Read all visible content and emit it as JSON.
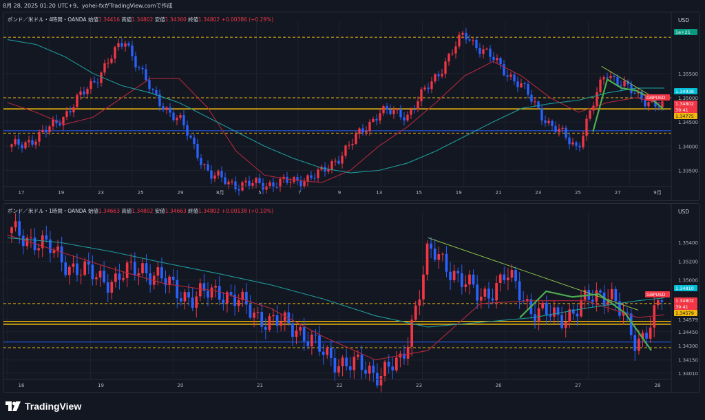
{
  "header_text": "8月 28, 2025 01:20 UTC+9、yohei-fxがTradingView.comで作成",
  "footer": {
    "brand": "TradingView"
  },
  "colors": {
    "up": "#f23645",
    "down": "#2962ff",
    "ma_fast": "#b2283a",
    "ma_slow": "#1e9b9b",
    "gold": "#f0b90b",
    "green": "#4caf50",
    "bg": "#131722",
    "grid": "#1e222d"
  },
  "chart_data": [
    {
      "type": "candlestick",
      "symbol_label": "ポンド／米ドル・4時間・OANDA",
      "ohlc": {
        "o_label": "始値",
        "o": "1.34416",
        "h_label": "高値",
        "h": "1.34802",
        "l_label": "安値",
        "l": "1.34360",
        "c_label": "終値",
        "c": "1.34802",
        "change": "+0.00386 (+0.29%)"
      },
      "currency": "USD",
      "y_ticks": [
        "1.35500",
        "1.35000",
        "1.34500",
        "1.34000",
        "1.33500"
      ],
      "ylim": [
        1.3318,
        1.3645
      ],
      "x_ticks": [
        "17",
        "19",
        "23",
        "25",
        "29",
        "8月",
        "5",
        "7",
        "9",
        "13",
        "15",
        "19",
        "21",
        "23",
        "25",
        "27",
        "9月"
      ],
      "badges": [
        {
          "text": "1e+21",
          "color": "#089981"
        },
        {
          "text": "1.34938",
          "color": "#00bcd4"
        },
        {
          "text": "GBPUSD",
          "color": "#f23645"
        },
        {
          "text": "1.34802",
          "color": "#f23645"
        },
        {
          "text": "39:41",
          "color": "#f23645"
        },
        {
          "text": "1.34775",
          "color": "#f0b90b"
        }
      ],
      "hlines": [
        {
          "y": 1.3625,
          "style": "dashed",
          "color": "#f0b90b"
        },
        {
          "y": 1.35,
          "style": "dashed",
          "color": "#f0b90b"
        },
        {
          "y": 1.3477,
          "style": "solid",
          "color": "#f0b90b"
        },
        {
          "y": 1.3427,
          "style": "dashed",
          "color": "#f0b90b"
        },
        {
          "y": 1.3432,
          "style": "solid",
          "color": "#2962ff"
        }
      ],
      "series": [
        {
          "name": "price",
          "x": [
            0,
            1,
            2,
            3,
            4,
            5,
            6,
            7,
            8,
            9,
            10,
            11,
            12,
            13,
            14,
            15,
            16,
            17,
            18,
            19,
            20,
            21,
            22,
            23
          ],
          "y": [
            1.3398,
            1.342,
            1.3472,
            1.3542,
            1.362,
            1.3505,
            1.3448,
            1.334,
            1.332,
            1.3322,
            1.3327,
            1.3345,
            1.3405,
            1.3472,
            1.3465,
            1.3545,
            1.3632,
            1.358,
            1.3525,
            1.3446,
            1.3398,
            1.3555,
            1.3508,
            1.348
          ]
        },
        {
          "name": "ma_fast",
          "x": [
            0,
            1,
            2,
            3,
            4,
            5,
            6,
            7,
            8,
            9,
            10,
            11,
            12,
            13,
            14,
            15,
            16,
            17,
            18,
            19,
            20,
            21,
            22,
            23
          ],
          "y": [
            1.349,
            1.347,
            1.3445,
            1.346,
            1.35,
            1.354,
            1.354,
            1.348,
            1.339,
            1.334,
            1.333,
            1.3325,
            1.335,
            1.34,
            1.344,
            1.349,
            1.3545,
            1.3575,
            1.3545,
            1.35,
            1.347,
            1.349,
            1.35,
            1.3487
          ]
        },
        {
          "name": "ma_slow",
          "x": [
            0,
            1,
            2,
            3,
            4,
            5,
            6,
            7,
            8,
            9,
            10,
            11,
            12,
            13,
            14,
            15,
            16,
            17,
            18,
            19,
            20,
            21,
            22,
            23
          ],
          "y": [
            1.362,
            1.361,
            1.3585,
            1.355,
            1.3525,
            1.351,
            1.349,
            1.346,
            1.343,
            1.34,
            1.3375,
            1.3355,
            1.3345,
            1.335,
            1.3365,
            1.339,
            1.342,
            1.345,
            1.3478,
            1.3488,
            1.3495,
            1.351,
            1.352,
            1.352
          ]
        },
        {
          "name": "projection",
          "x": [
            20.5,
            21,
            21.5,
            22,
            22.5,
            23
          ],
          "y": [
            1.343,
            1.3538,
            1.352,
            1.3515,
            1.35,
            1.3475
          ]
        },
        {
          "name": "trendline",
          "x": [
            20.8,
            22.5
          ],
          "y": [
            1.3565,
            1.3505
          ]
        }
      ]
    },
    {
      "type": "candlestick",
      "symbol_label": "ポンド／米ドル・1時間・OANDA",
      "ohlc": {
        "o_label": "始値",
        "o": "1.34663",
        "h_label": "高値",
        "h": "1.34802",
        "l_label": "安値",
        "l": "1.34663",
        "c_label": "終値",
        "c": "1.34802",
        "change": "+0.00138 (+0.10%)"
      },
      "currency": "USD",
      "y_ticks": [
        "1.35400",
        "1.35200",
        "1.35000",
        "1.34579",
        "1.34450",
        "1.34300",
        "1.34150",
        "1.34010"
      ],
      "ylim": [
        1.3395,
        1.3565
      ],
      "x_ticks": [
        "16",
        "19",
        "20",
        "21",
        "22",
        "23",
        "26",
        "27",
        "28"
      ],
      "badges": [
        {
          "text": "1.34810",
          "color": "#00bcd4"
        },
        {
          "text": "GBPUSD",
          "color": "#f23645"
        },
        {
          "text": "1.34802",
          "color": "#f23645"
        },
        {
          "text": "39:41",
          "color": "#f23645"
        },
        {
          "text": "1.34579",
          "color": "#f0b90b"
        }
      ],
      "hlines": [
        {
          "y": 1.3475,
          "style": "dashed",
          "color": "#f0b90b"
        },
        {
          "y": 1.3456,
          "style": "solid",
          "color": "#f0b90b"
        },
        {
          "y": 1.3453,
          "style": "solid",
          "color": "#f0b90b"
        },
        {
          "y": 1.3428,
          "style": "dashed",
          "color": "#f0b90b"
        },
        {
          "y": 1.3434,
          "style": "solid",
          "color": "#2962ff"
        }
      ],
      "series": [
        {
          "name": "price",
          "x": [
            0,
            1,
            2,
            3,
            4,
            5,
            6,
            7,
            8,
            9,
            10,
            11,
            12,
            13,
            14,
            15,
            16,
            17,
            18,
            19,
            20,
            21,
            22,
            23,
            24,
            25
          ],
          "y": [
            1.355,
            1.3542,
            1.352,
            1.3505,
            1.35,
            1.3515,
            1.3495,
            1.348,
            1.349,
            1.347,
            1.3455,
            1.345,
            1.342,
            1.341,
            1.3402,
            1.341,
            1.353,
            1.351,
            1.348,
            1.3505,
            1.347,
            1.3458,
            1.3475,
            1.349,
            1.343,
            1.348
          ]
        },
        {
          "name": "ma_fast",
          "x": [
            0,
            2,
            4,
            6,
            8,
            10,
            12,
            14,
            16,
            18,
            20,
            22,
            24,
            25
          ],
          "y": [
            1.3548,
            1.353,
            1.3512,
            1.3496,
            1.3488,
            1.347,
            1.344,
            1.3415,
            1.3425,
            1.3475,
            1.3478,
            1.3478,
            1.346,
            1.3463
          ]
        },
        {
          "name": "ma_slow",
          "x": [
            0,
            2,
            4,
            6,
            8,
            10,
            12,
            14,
            16,
            18,
            20,
            22,
            24,
            25
          ],
          "y": [
            1.3545,
            1.354,
            1.353,
            1.3518,
            1.3507,
            1.3495,
            1.348,
            1.3462,
            1.345,
            1.3455,
            1.346,
            1.347,
            1.3478,
            1.3481
          ]
        },
        {
          "name": "trendline",
          "x": [
            16,
            24
          ],
          "y": [
            1.3545,
            1.3468
          ]
        },
        {
          "name": "projection",
          "x": [
            19.5,
            20.5,
            21.5,
            22.5,
            23.5,
            24.5
          ],
          "y": [
            1.346,
            1.3488,
            1.3482,
            1.3485,
            1.3465,
            1.3425
          ]
        }
      ]
    }
  ]
}
